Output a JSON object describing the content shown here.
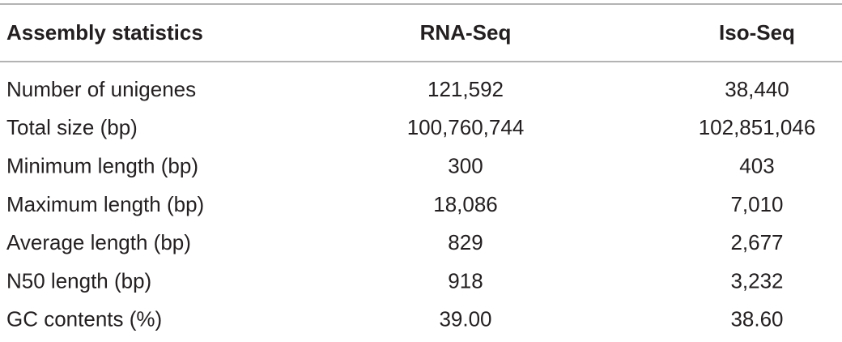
{
  "table": {
    "header": [
      "Assembly statistics",
      "RNA-Seq",
      "Iso-Seq"
    ],
    "rows": [
      [
        "Number of unigenes",
        "121,592",
        "38,440"
      ],
      [
        "Total size (bp)",
        "100,760,744",
        "102,851,046"
      ],
      [
        "Minimum length (bp)",
        "300",
        "403"
      ],
      [
        "Maximum length (bp)",
        "18,086",
        "7,010"
      ],
      [
        "Average length (bp)",
        "829",
        "2,677"
      ],
      [
        "N50 length (bp)",
        "918",
        "3,232"
      ],
      [
        "GC contents (%)",
        "39.00",
        "38.60"
      ]
    ]
  }
}
